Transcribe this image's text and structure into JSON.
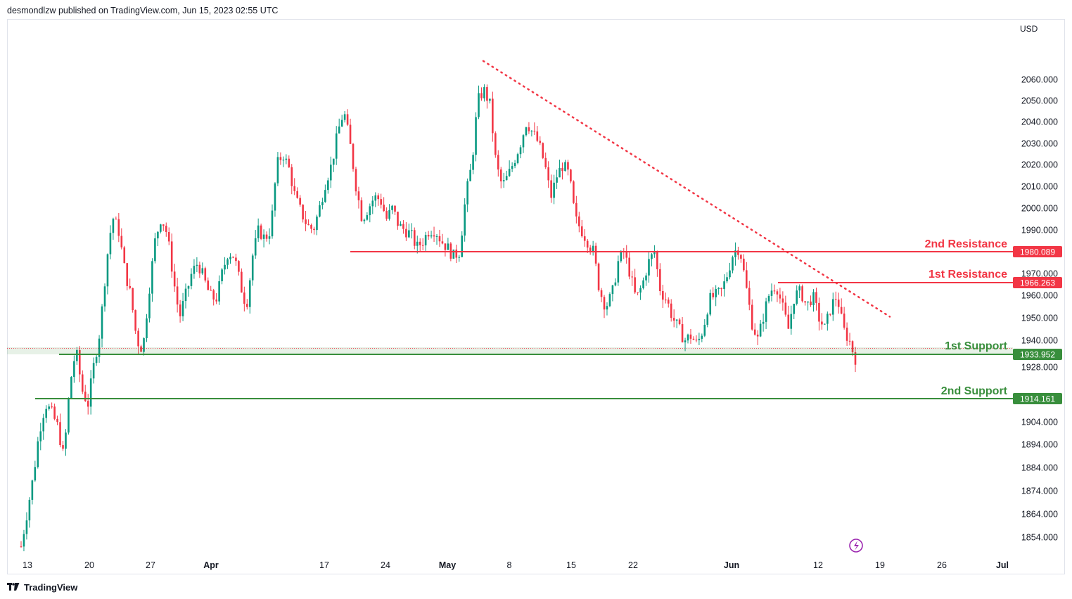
{
  "header": {
    "publisher_text": "desmondlzw published on TradingView.com, Jun 15, 2023 02:55 UTC"
  },
  "footer": {
    "brand": "TradingView"
  },
  "colors": {
    "up": "#089981",
    "down": "#f23645",
    "resistance": "#f23645",
    "support": "#388e3c",
    "trendline": "#f23645"
  },
  "chart_data": {
    "type": "candlestick",
    "currency_label": "USD",
    "y_ticks": [
      "2060.000",
      "2050.000",
      "2040.000",
      "2030.000",
      "2020.000",
      "2010.000",
      "2000.000",
      "1990.000",
      "1970.000",
      "1960.000",
      "1950.000",
      "1940.000",
      "1928.000",
      "1904.000",
      "1894.000",
      "1884.000",
      "1874.000",
      "1864.000",
      "1854.000"
    ],
    "x_ticks": [
      {
        "label": "13",
        "bold": false
      },
      {
        "label": "20",
        "bold": false
      },
      {
        "label": "27",
        "bold": false
      },
      {
        "label": "Apr",
        "bold": true
      },
      {
        "label": "17",
        "bold": false
      },
      {
        "label": "24",
        "bold": false
      },
      {
        "label": "May",
        "bold": true
      },
      {
        "label": "8",
        "bold": false
      },
      {
        "label": "15",
        "bold": false
      },
      {
        "label": "22",
        "bold": false
      },
      {
        "label": "Jun",
        "bold": true
      },
      {
        "label": "12",
        "bold": false
      },
      {
        "label": "19",
        "bold": false
      },
      {
        "label": "26",
        "bold": false
      },
      {
        "label": "Jul",
        "bold": true
      }
    ],
    "levels": [
      {
        "name": "2nd Resistance",
        "value": 1980.089,
        "label": "1980.089",
        "kind": "resistance"
      },
      {
        "name": "1st Resistance",
        "value": 1966.263,
        "label": "1966.263",
        "kind": "resistance"
      },
      {
        "name": "1st Support",
        "value": 1933.952,
        "label": "1933.952",
        "kind": "support"
      },
      {
        "name": "2nd Support",
        "value": 1914.161,
        "label": "1914.161",
        "kind": "support"
      }
    ],
    "trendline": {
      "start_price": 2068.5,
      "end_price": 1950.5
    },
    "price_path": [
      1850,
      1865,
      1880,
      1900,
      1912,
      1908,
      1902,
      1888,
      1920,
      1936,
      1918,
      1912,
      1930,
      1945,
      1975,
      1996,
      1990,
      1972,
      1960,
      1940,
      1936,
      1962,
      1985,
      1996,
      1988,
      1968,
      1950,
      1960,
      1970,
      1975,
      1968,
      1960,
      1958,
      1970,
      1980,
      1978,
      1965,
      1955,
      1978,
      1990,
      1986,
      1990,
      2020,
      2025,
      2018,
      2005,
      1998,
      1992,
      1990,
      2000,
      2012,
      2020,
      2035,
      2045,
      2030,
      2010,
      1995,
      2000,
      2005,
      2004,
      1995,
      2000,
      1992,
      1990,
      1988,
      1982,
      1985,
      1990,
      1990,
      1985,
      1982,
      1978,
      1980,
      2005,
      2020,
      2050,
      2055,
      2048,
      2020,
      2010,
      2015,
      2022,
      2030,
      2040,
      2035,
      2030,
      2020,
      2005,
      2015,
      2020,
      2015,
      1995,
      1990,
      1985,
      1980,
      1962,
      1955,
      1960,
      1975,
      1980,
      1970,
      1958,
      1965,
      1975,
      1980,
      1962,
      1958,
      1950,
      1945,
      1940,
      1942,
      1938,
      1945,
      1958,
      1960,
      1962,
      1970,
      1980,
      1982,
      1965,
      1948,
      1940,
      1952,
      1962,
      1965,
      1955,
      1945,
      1960,
      1962,
      1955,
      1960,
      1950,
      1945,
      1955,
      1960,
      1945,
      1940,
      1932
    ],
    "candle_count": 300
  }
}
